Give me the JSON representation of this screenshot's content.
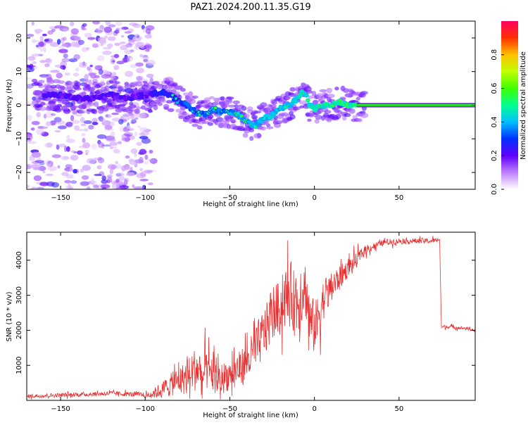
{
  "title": "PAZ1.2024.200.11.35.G19",
  "chart_data": [
    {
      "type": "heatmap",
      "xlabel": "Height of straight line (km)",
      "ylabel": "Frequency (Hz)",
      "xlim": [
        -170,
        95
      ],
      "ylim": [
        -25,
        25
      ],
      "x_ticks": [
        -150,
        -100,
        -50,
        0,
        50
      ],
      "y_ticks": [
        -20,
        -10,
        0,
        10,
        20
      ],
      "colorbar": {
        "label": "Normalized spectral amplitude",
        "range": [
          0,
          1
        ],
        "ticks": [
          0.0,
          0.2,
          0.4,
          0.6,
          0.8
        ],
        "stops": [
          "#ffffff",
          "#c080ff",
          "#6000ff",
          "#0030ff",
          "#00c0ff",
          "#00ff90",
          "#40ff00",
          "#c0ff00",
          "#ffc000",
          "#ff3000",
          "#ff0060"
        ]
      },
      "ridge": {
        "x": [
          -150,
          -140,
          -130,
          -120,
          -110,
          -100,
          -90,
          -85,
          -80,
          -75,
          -70,
          -65,
          -60,
          -55,
          -50,
          -45,
          -40,
          -35,
          -30,
          -25,
          -20,
          -15,
          -10,
          -7,
          -5,
          -3,
          0,
          5,
          10,
          15,
          20,
          25,
          50,
          75,
          95
        ],
        "y": [
          3,
          2,
          2,
          3,
          2,
          3,
          4,
          3,
          1,
          0,
          -2,
          -3,
          -1,
          -2,
          -2,
          -3,
          -5,
          -6,
          -4,
          -3,
          -1,
          0,
          2,
          4,
          3,
          0,
          -1,
          0,
          0,
          1,
          0,
          0,
          0,
          0,
          0
        ]
      },
      "noise_region_x": [
        -170,
        -95
      ],
      "stable_tone": {
        "x_start": 25,
        "x_end": 95,
        "frequency": 0
      }
    },
    {
      "type": "line",
      "xlabel": "Height of straight line (km)",
      "ylabel": "SNR (10 * v/v)",
      "xlim": [
        -170,
        95
      ],
      "ylim": [
        0,
        4800
      ],
      "x_ticks": [
        -150,
        -100,
        -50,
        0,
        50
      ],
      "y_ticks": [
        1000,
        2000,
        3000,
        4000
      ],
      "line_color": "#e83030",
      "trend": {
        "x": [
          -170,
          -150,
          -130,
          -120,
          -110,
          -100,
          -95,
          -90,
          -85,
          -80,
          -75,
          -70,
          -65,
          -60,
          -55,
          -50,
          -45,
          -40,
          -35,
          -30,
          -25,
          -20,
          -15,
          -10,
          -7,
          -5,
          -3,
          0,
          5,
          10,
          15,
          20,
          25,
          30,
          40,
          50,
          60,
          70,
          74,
          75,
          80,
          90,
          95
        ],
        "y": [
          120,
          150,
          180,
          200,
          180,
          150,
          200,
          300,
          450,
          550,
          700,
          900,
          800,
          700,
          650,
          750,
          900,
          1100,
          1400,
          1900,
          2500,
          2700,
          3000,
          2800,
          3300,
          3100,
          2200,
          2100,
          2900,
          3200,
          3500,
          3800,
          4000,
          4300,
          4500,
          4550,
          4550,
          4550,
          4600,
          2100,
          2100,
          2050,
          2000
        ]
      },
      "noise_amplitude": {
        "x": [
          -170,
          -100,
          -90,
          -80,
          -70,
          -60,
          -50,
          -40,
          -30,
          -20,
          -10,
          0,
          10,
          20,
          30,
          40,
          50,
          74,
          75,
          95
        ],
        "y": [
          60,
          80,
          250,
          450,
          700,
          550,
          500,
          600,
          800,
          900,
          1100,
          800,
          500,
          300,
          150,
          100,
          90,
          80,
          50,
          50
        ]
      }
    }
  ]
}
